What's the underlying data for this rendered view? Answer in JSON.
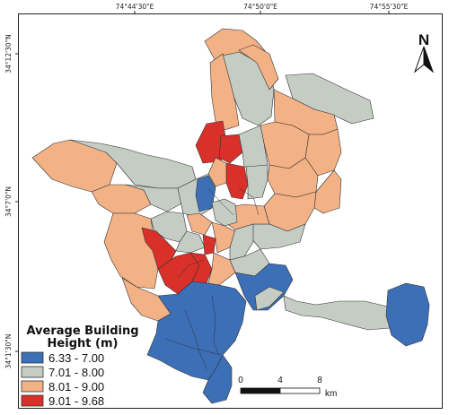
{
  "graticule": {
    "top": [
      "74°44'30\"E",
      "74°50'0\"E",
      "74°55'30\"E"
    ],
    "left": [
      "34°12'30\"N",
      "34°7'0\"N",
      "34°1'30\"N"
    ]
  },
  "legend": {
    "title_line1": "Average Building",
    "title_line2": "Height (m)",
    "classes": [
      {
        "label": "6.33 - 7.00",
        "color": "#3c6fb6"
      },
      {
        "label": "7.01 - 8.00",
        "color": "#c5ccc4"
      },
      {
        "label": "8.01 - 9.00",
        "color": "#f3b286"
      },
      {
        "label": "9.01 - 9.68",
        "color": "#d9302a"
      }
    ]
  },
  "scalebar": {
    "ticks": [
      "0",
      "4",
      "8"
    ],
    "unit": "km"
  },
  "north": {
    "label": "N"
  }
}
